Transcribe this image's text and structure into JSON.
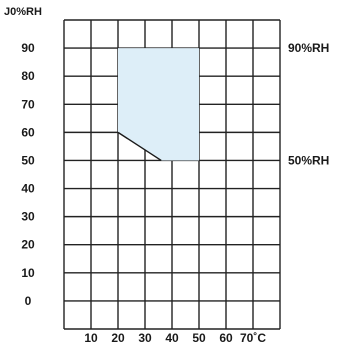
{
  "chart_data": {
    "type": "area",
    "ylabel": "J0%RH",
    "xunit": "70˚C",
    "x_ticks": [
      {
        "value": 10,
        "label": "10"
      },
      {
        "value": 20,
        "label": "20"
      },
      {
        "value": 30,
        "label": "30"
      },
      {
        "value": 40,
        "label": "40"
      },
      {
        "value": 50,
        "label": "50"
      },
      {
        "value": 60,
        "label": "60"
      },
      {
        "value": 70,
        "label": "70˚C"
      }
    ],
    "y_ticks": [
      {
        "value": 0,
        "label": "0"
      },
      {
        "value": 10,
        "label": "10"
      },
      {
        "value": 20,
        "label": "20"
      },
      {
        "value": 30,
        "label": "30"
      },
      {
        "value": 40,
        "label": "40"
      },
      {
        "value": 50,
        "label": "50"
      },
      {
        "value": 60,
        "label": "60"
      },
      {
        "value": 70,
        "label": "70"
      },
      {
        "value": 80,
        "label": "80"
      },
      {
        "value": 90,
        "label": "90"
      }
    ],
    "xlim": [
      0,
      80
    ],
    "ylim": [
      -10,
      100
    ],
    "grid": true,
    "region": {
      "fill": "#ddeef8",
      "points": [
        [
          20,
          90
        ],
        [
          50,
          90
        ],
        [
          50,
          50
        ],
        [
          36,
          50
        ],
        [
          20,
          60
        ]
      ]
    },
    "boundary_line": {
      "color": "#1a1a1a",
      "points": [
        [
          20,
          60
        ],
        [
          36,
          50
        ]
      ]
    },
    "annotations": [
      {
        "y": 90,
        "label": "90%RH"
      },
      {
        "y": 50,
        "label": "50%RH"
      }
    ]
  }
}
